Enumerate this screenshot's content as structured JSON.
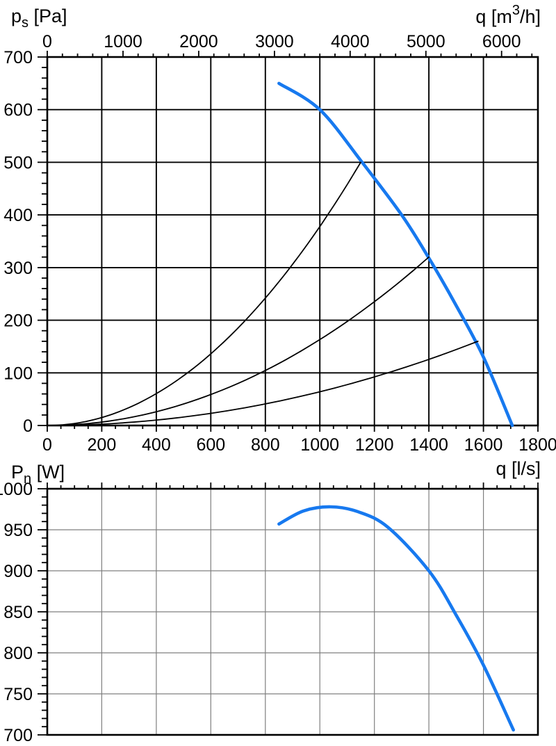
{
  "page": {
    "background": "#ffffff",
    "description": "Fan performance diagram: static pressure and power input versus air flow"
  },
  "colors": {
    "curve_blue": "#1779ef",
    "grid_black": "#000000",
    "grid_grey": "#7f7f7f",
    "axis_black": "#000000",
    "text": "#000000"
  },
  "chart_data": [
    {
      "type": "line",
      "name": "static-pressure-chart",
      "y_left": {
        "title_parts": [
          {
            "t": "p"
          },
          {
            "t": "s",
            "sub": true
          },
          {
            "t": " [Pa]"
          }
        ],
        "unit": "Pa",
        "min": 0,
        "max": 700,
        "major_tick": 100,
        "minor_tick": 20,
        "labels": [
          700,
          600,
          500,
          400,
          300,
          200,
          100,
          0
        ]
      },
      "x_top": {
        "title_parts": [
          {
            "t": "q [m"
          },
          {
            "t": "3",
            "sup": true
          },
          {
            "t": "/h]"
          }
        ],
        "unit": "m3/h",
        "min": 0,
        "max": 6480,
        "major_tick": 1000,
        "minor_tick": 200,
        "labels": [
          0,
          1000,
          2000,
          3000,
          4000,
          5000,
          6000
        ]
      },
      "x_bottom": {
        "title_parts": [
          {
            "t": "q [l/s]"
          }
        ],
        "unit": "l/s",
        "min": 0,
        "max": 1800,
        "major_tick": 200,
        "minor_tick": 50,
        "labels": [
          0,
          200,
          400,
          600,
          800,
          1000,
          1200,
          1400,
          1600,
          1800
        ]
      },
      "grid": {
        "v_every": 200,
        "h_every": 100,
        "color": "#000000",
        "width": 1.9
      },
      "series": [
        {
          "name": "fan-pressure-curve",
          "color": "#1779ef",
          "width": 4.6,
          "smooth": true,
          "points": [
            [
              850,
              650
            ],
            [
              1000,
              600
            ],
            [
              1155,
              500
            ],
            [
              1300,
              400
            ],
            [
              1400,
              318
            ],
            [
              1500,
              228
            ],
            [
              1600,
              130
            ],
            [
              1706,
              0
            ]
          ]
        },
        {
          "name": "system-curve-1",
          "shape": "parabola",
          "color": "#000000",
          "width": 1.8,
          "endpoint": [
            1150,
            500
          ]
        },
        {
          "name": "system-curve-2",
          "shape": "parabola",
          "color": "#000000",
          "width": 1.8,
          "endpoint": [
            1400,
            320
          ]
        },
        {
          "name": "system-curve-3",
          "shape": "parabola",
          "color": "#000000",
          "width": 1.8,
          "endpoint": [
            1580,
            160
          ]
        }
      ]
    },
    {
      "type": "line",
      "name": "power-input-chart",
      "y_left": {
        "title_parts": [
          {
            "t": "P"
          },
          {
            "t": "n",
            "sub": true
          },
          {
            "t": " [W]"
          }
        ],
        "unit": "W",
        "min": 700,
        "max": 1000,
        "major_tick": 50,
        "minor_tick": 10,
        "labels": [
          1000,
          950,
          900,
          850,
          800,
          750,
          700
        ]
      },
      "x_top": {
        "title_parts": [],
        "unit": "l/s",
        "min": 0,
        "max": 1800,
        "major_tick": 200,
        "minor_tick": 50,
        "labels": []
      },
      "grid": {
        "v_every": 200,
        "h_every": 50,
        "color": "#7f7f7f",
        "width": 1.2
      },
      "series": [
        {
          "name": "power-curve",
          "color": "#1779ef",
          "width": 4.6,
          "smooth": true,
          "points": [
            [
              850,
              957
            ],
            [
              940,
              973
            ],
            [
              1040,
              978
            ],
            [
              1140,
              972
            ],
            [
              1250,
              953
            ],
            [
              1400,
              900
            ],
            [
              1500,
              846
            ],
            [
              1600,
              785
            ],
            [
              1710,
              706
            ]
          ]
        }
      ]
    }
  ]
}
